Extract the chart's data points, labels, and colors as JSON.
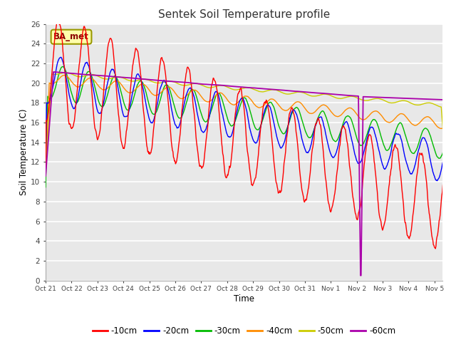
{
  "title": "Sentek Soil Temperature profile",
  "xlabel": "Time",
  "ylabel": "Soil Temperature (C)",
  "ylim": [
    0,
    26
  ],
  "yticks": [
    0,
    2,
    4,
    6,
    8,
    10,
    12,
    14,
    16,
    18,
    20,
    22,
    24,
    26
  ],
  "plot_bg_color": "#e8e8e8",
  "fig_bg_color": "#ffffff",
  "legend_label": "BA_met",
  "colors": {
    "-10cm": "#ff0000",
    "-20cm": "#0000ff",
    "-30cm": "#00bb00",
    "-40cm": "#ff8c00",
    "-50cm": "#cccc00",
    "-60cm": "#aa00aa"
  },
  "tick_labels": [
    "Oct 21",
    "Oct 22",
    "Oct 23",
    "Oct 24",
    "Oct 25",
    "Oct 26",
    "Oct 27",
    "Oct 28",
    "Oct 29",
    "Oct 30",
    "Oct 31",
    "Nov 1",
    "Nov 2",
    "Nov 3",
    "Nov 4",
    "Nov 5"
  ],
  "line_width": 1.0
}
